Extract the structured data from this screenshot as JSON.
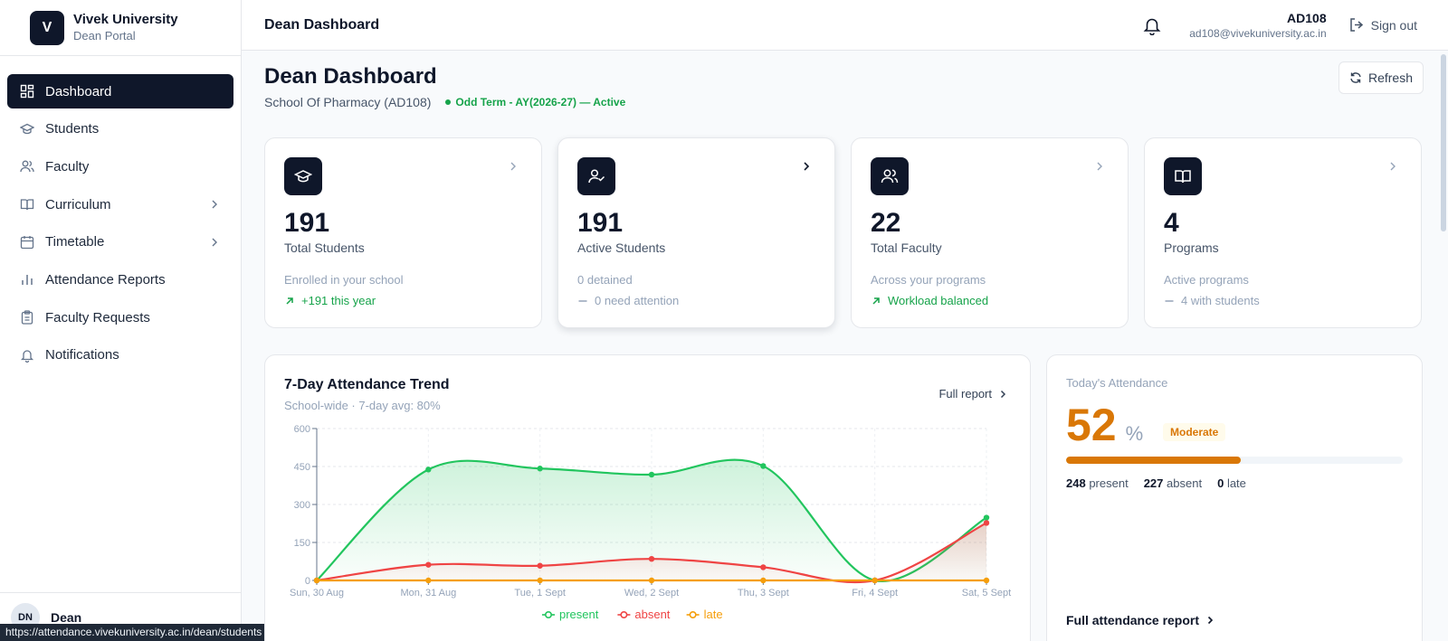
{
  "brand": {
    "logo_letter": "V",
    "name": "Vivek University",
    "sub": "Dean Portal"
  },
  "sidebar": {
    "items": [
      {
        "label": "Dashboard",
        "icon": "dashboard-icon",
        "active": true
      },
      {
        "label": "Students",
        "icon": "graduation-cap-icon"
      },
      {
        "label": "Faculty",
        "icon": "users-icon"
      },
      {
        "label": "Curriculum",
        "icon": "book-icon",
        "chevron": true
      },
      {
        "label": "Timetable",
        "icon": "calendar-icon",
        "chevron": true
      },
      {
        "label": "Attendance Reports",
        "icon": "bar-chart-icon"
      },
      {
        "label": "Faculty Requests",
        "icon": "clipboard-icon"
      },
      {
        "label": "Notifications",
        "icon": "bell-icon"
      }
    ],
    "footer": {
      "initials": "DN",
      "name": "Dean"
    }
  },
  "status_url": "https://attendance.vivekuniversity.ac.in/dean/students",
  "topbar": {
    "title": "Dean Dashboard",
    "user_code": "AD108",
    "user_email": "ad108@vivekuniversity.ac.in",
    "signout_label": "Sign out"
  },
  "header": {
    "title": "Dean Dashboard",
    "school": "School Of Pharmacy (AD108)",
    "term": "Odd Term - AY(2026-27) — Active",
    "refresh_label": "Refresh"
  },
  "cards": [
    {
      "value": "191",
      "label": "Total Students",
      "sub": "Enrolled in your school",
      "trend": "+191 this year",
      "trend_type": "up",
      "icon": "graduation-cap-icon"
    },
    {
      "value": "191",
      "label": "Active Students",
      "sub": "0 detained",
      "trend": "0 need attention",
      "trend_type": "flat",
      "icon": "user-check-icon"
    },
    {
      "value": "22",
      "label": "Total Faculty",
      "sub": "Across your programs",
      "trend": "Workload balanced",
      "trend_type": "up",
      "icon": "users-icon"
    },
    {
      "value": "4",
      "label": "Programs",
      "sub": "Active programs",
      "trend": "4 with students",
      "trend_type": "flat",
      "icon": "book-open-icon"
    }
  ],
  "trend_chart": {
    "title": "7-Day Attendance Trend",
    "subtitle": "School-wide · 7-day avg: 80%",
    "link_label": "Full report"
  },
  "chart_data": {
    "type": "area",
    "categories": [
      "Sun, 30 Aug",
      "Mon, 31 Aug",
      "Tue, 1 Sept",
      "Wed, 2 Sept",
      "Thu, 3 Sept",
      "Fri, 4 Sept",
      "Sat, 5 Sept"
    ],
    "series": [
      {
        "name": "present",
        "values": [
          0,
          438,
          442,
          418,
          452,
          0,
          248
        ],
        "color": "#22c55e"
      },
      {
        "name": "absent",
        "values": [
          0,
          62,
          58,
          85,
          52,
          0,
          227
        ],
        "color": "#ef4444"
      },
      {
        "name": "late",
        "values": [
          0,
          0,
          0,
          0,
          0,
          0,
          0
        ],
        "color": "#f59e0b"
      }
    ],
    "yticks": [
      "0",
      "150",
      "300",
      "450",
      "600"
    ],
    "ylim": [
      0,
      600
    ],
    "grid": true,
    "legend": "bottom-center"
  },
  "today": {
    "label": "Today's Attendance",
    "percent": "52",
    "percent_sign": "%",
    "badge": "Moderate",
    "fill_fraction": 0.52,
    "present_count": "248",
    "present_label": "present",
    "absent_count": "227",
    "absent_label": "absent",
    "late_count": "0",
    "late_label": "late",
    "link_label": "Full attendance report"
  }
}
